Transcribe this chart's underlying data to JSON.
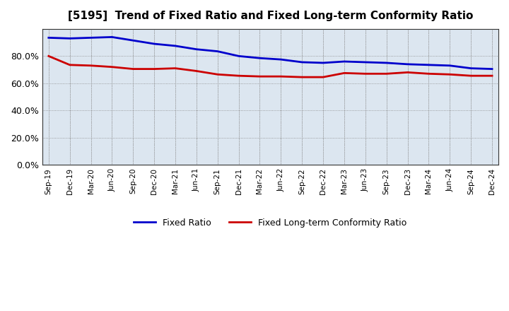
{
  "title": "[5195]  Trend of Fixed Ratio and Fixed Long-term Conformity Ratio",
  "x_labels": [
    "Sep-19",
    "Dec-19",
    "Mar-20",
    "Jun-20",
    "Sep-20",
    "Dec-20",
    "Mar-21",
    "Jun-21",
    "Sep-21",
    "Dec-21",
    "Mar-22",
    "Jun-22",
    "Sep-22",
    "Dec-22",
    "Mar-23",
    "Jun-23",
    "Sep-23",
    "Dec-23",
    "Mar-24",
    "Jun-24",
    "Sep-24",
    "Dec-24"
  ],
  "fixed_ratio": [
    93.5,
    93.0,
    93.5,
    94.0,
    91.5,
    89.0,
    87.5,
    85.0,
    83.5,
    80.0,
    78.5,
    77.5,
    75.5,
    75.0,
    76.0,
    75.5,
    75.0,
    74.0,
    73.5,
    73.0,
    71.0,
    70.5
  ],
  "fixed_lt_ratio": [
    80.0,
    73.5,
    73.0,
    72.0,
    70.5,
    70.5,
    71.0,
    69.0,
    66.5,
    65.5,
    65.0,
    65.0,
    64.5,
    64.5,
    67.5,
    67.0,
    67.0,
    68.0,
    67.0,
    66.5,
    65.5,
    65.5
  ],
  "fixed_ratio_color": "#0000cc",
  "fixed_lt_ratio_color": "#cc0000",
  "background_color": "#ffffff",
  "plot_bg_color": "#dce6f0",
  "grid_color": "#888888",
  "ylim": [
    0,
    100
  ],
  "yticks": [
    0,
    20,
    40,
    60,
    80
  ],
  "legend_fixed_ratio": "Fixed Ratio",
  "legend_fixed_lt_ratio": "Fixed Long-term Conformity Ratio"
}
